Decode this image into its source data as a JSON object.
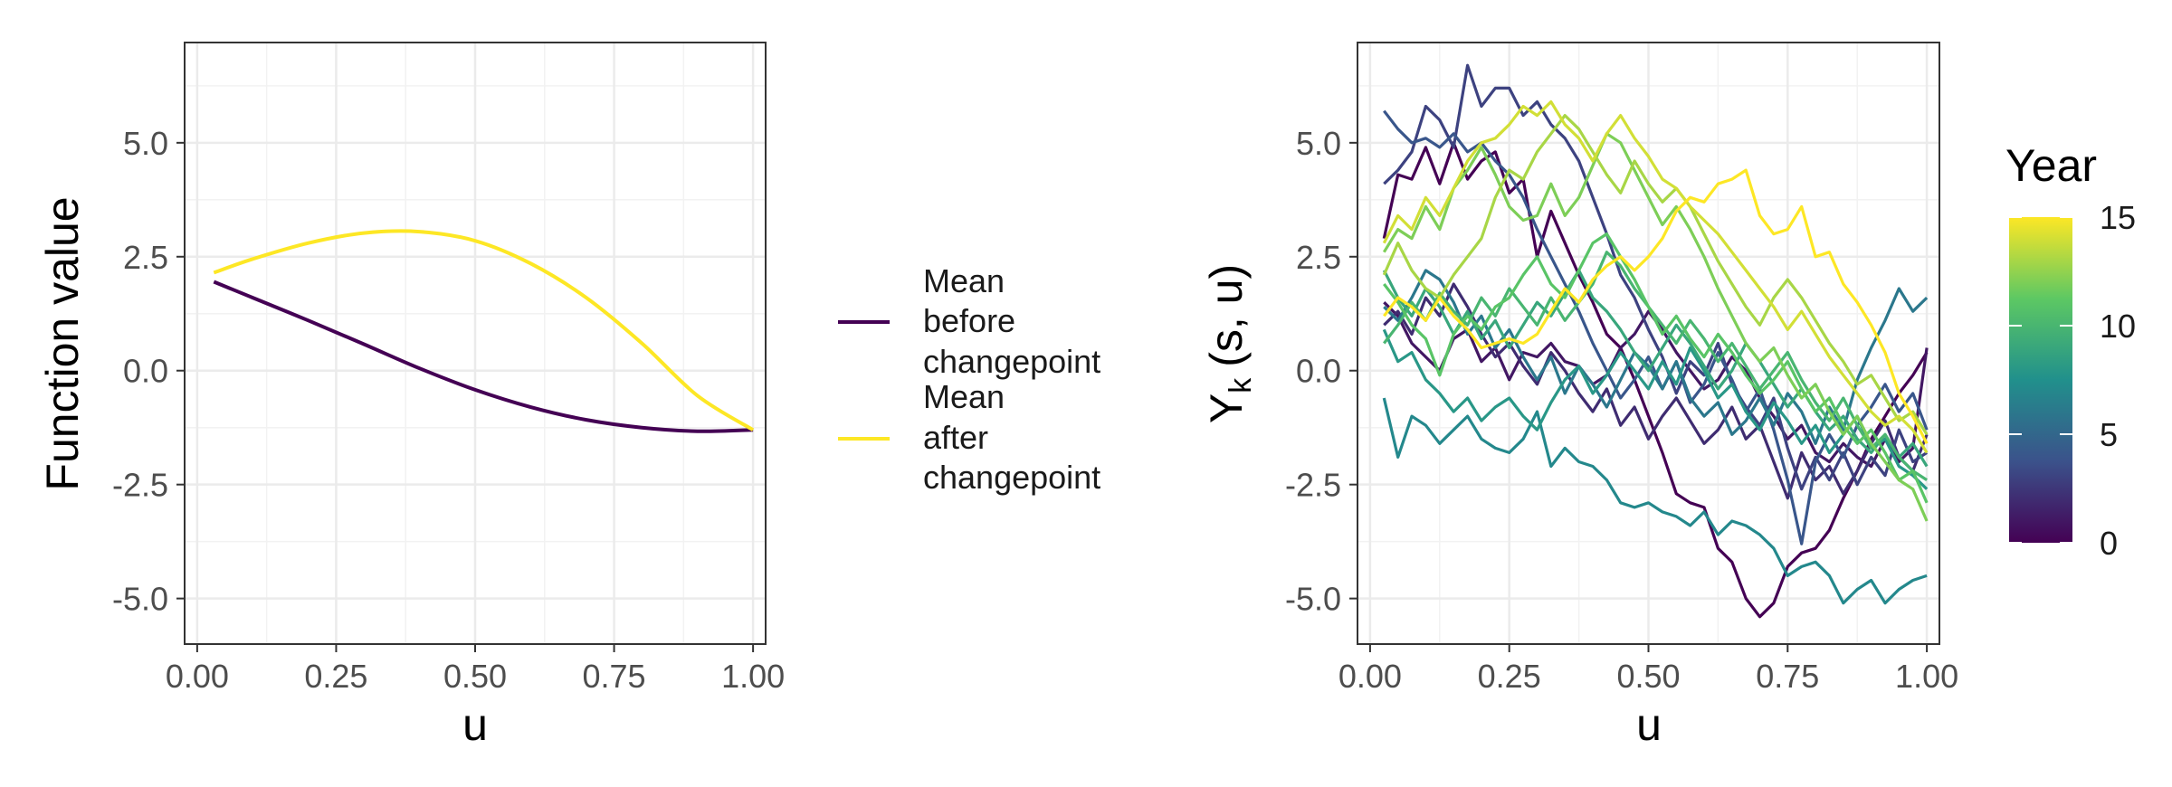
{
  "chart_data": [
    {
      "type": "line",
      "xlabel": "u",
      "ylabel": "Function value",
      "xlim": [
        0,
        1
      ],
      "ylim": [
        -6,
        7.2
      ],
      "xticks": [
        "0.00",
        "0.25",
        "0.50",
        "0.75",
        "1.00"
      ],
      "yticks": [
        "-5.0",
        "-2.5",
        "0.0",
        "2.5",
        "5.0"
      ],
      "grid": true,
      "legend_position": "right",
      "series": [
        {
          "name": "Mean before changepoint",
          "color": "#440154",
          "x": [
            0.03,
            0.1,
            0.2,
            0.3,
            0.4,
            0.5,
            0.6,
            0.7,
            0.8,
            0.9,
            1.0
          ],
          "y": [
            1.95,
            1.6,
            1.1,
            0.58,
            0.05,
            -0.42,
            -0.8,
            -1.08,
            -1.25,
            -1.33,
            -1.3
          ]
        },
        {
          "name": "Mean after changepoint",
          "color": "#FDE725",
          "x": [
            0.03,
            0.1,
            0.2,
            0.3,
            0.4,
            0.5,
            0.6,
            0.7,
            0.8,
            0.9,
            1.0
          ],
          "y": [
            2.15,
            2.45,
            2.8,
            3.02,
            3.05,
            2.85,
            2.35,
            1.6,
            0.6,
            -0.55,
            -1.3
          ]
        }
      ],
      "legend_lines": [
        [
          "Mean",
          "before",
          "changepoint"
        ],
        [
          "Mean",
          "after",
          "changepoint"
        ]
      ]
    },
    {
      "type": "line",
      "xlabel": "u",
      "ylabel_main": "Y",
      "ylabel_sub": "k",
      "ylabel_rest": "(s, u)",
      "xlim": [
        0,
        1
      ],
      "ylim": [
        -6,
        7.2
      ],
      "xticks": [
        "0.00",
        "0.25",
        "0.50",
        "0.75",
        "1.00"
      ],
      "yticks": [
        "-5.0",
        "-2.5",
        "0.0",
        "2.5",
        "5.0"
      ],
      "grid": true,
      "color_scale": {
        "title": "Year",
        "min": 0,
        "max": 15,
        "ticks": [
          "0",
          "5",
          "10",
          "15"
        ],
        "colors": [
          "#440154",
          "#3B528B",
          "#21908C",
          "#5DC863",
          "#FDE725"
        ]
      },
      "x": [
        0.025,
        0.05,
        0.075,
        0.1,
        0.125,
        0.15,
        0.175,
        0.2,
        0.225,
        0.25,
        0.275,
        0.3,
        0.325,
        0.35,
        0.375,
        0.4,
        0.425,
        0.45,
        0.475,
        0.5,
        0.525,
        0.55,
        0.575,
        0.6,
        0.625,
        0.65,
        0.675,
        0.7,
        0.725,
        0.75,
        0.775,
        0.8,
        0.825,
        0.85,
        0.875,
        0.9,
        0.925,
        0.95,
        0.975,
        1.0
      ],
      "series": [
        {
          "year": 0,
          "y": [
            2.9,
            4.3,
            4.2,
            4.9,
            4.1,
            5.0,
            4.2,
            4.6,
            4.8,
            3.9,
            4.2,
            2.5,
            3.5,
            2.8,
            2.1,
            1.5,
            0.8,
            0.5,
            -0.2,
            -1.0,
            -1.8,
            -2.7,
            -2.9,
            -3.0,
            -3.9,
            -4.2,
            -5.0,
            -5.4,
            -5.1,
            -4.3,
            -4.0,
            -3.9,
            -3.5,
            -2.8,
            -2.2,
            -1.5,
            -1.0,
            -0.5,
            -0.1,
            0.4
          ]
        },
        {
          "year": 1,
          "y": [
            1.5,
            1.2,
            0.6,
            0.3,
            0.0,
            0.7,
            0.9,
            0.2,
            0.5,
            -0.2,
            0.4,
            0.3,
            0.6,
            0.2,
            0.1,
            -0.3,
            -0.1,
            0.5,
            0.8,
            1.3,
            0.9,
            0.4,
            0.0,
            -0.4,
            -0.2,
            0.3,
            0.0,
            -0.6,
            -1.0,
            -1.5,
            -1.2,
            -1.8,
            -2.0,
            -1.6,
            -1.9,
            -2.1,
            -1.5,
            -2.0,
            -1.7,
            0.5
          ]
        },
        {
          "year": 2,
          "y": [
            1.0,
            1.3,
            0.8,
            1.6,
            1.2,
            1.9,
            1.4,
            0.8,
            0.3,
            0.6,
            0.1,
            -0.3,
            0.4,
            0.0,
            -0.5,
            -0.9,
            -0.4,
            -1.2,
            -0.8,
            -1.5,
            -1.0,
            -0.6,
            -1.1,
            -1.6,
            -1.3,
            -0.8,
            -1.5,
            -1.2,
            -2.0,
            -2.8,
            -1.8,
            -2.4,
            -2.1,
            -2.7,
            -2.2,
            -1.6,
            -1.1,
            -1.9,
            -2.2,
            -1.4
          ]
        },
        {
          "year": 3,
          "y": [
            4.1,
            4.4,
            4.8,
            5.8,
            5.5,
            4.9,
            6.7,
            5.8,
            6.2,
            6.2,
            5.6,
            5.9,
            5.4,
            5.1,
            4.6,
            3.8,
            3.0,
            2.1,
            1.6,
            0.9,
            0.3,
            -0.5,
            0.2,
            -0.1,
            0.6,
            -0.3,
            -0.8,
            -1.2,
            -0.6,
            -1.7,
            -2.6,
            -1.9,
            -2.4,
            -1.8,
            -2.5,
            -1.9,
            -2.3,
            -1.3,
            -2.0,
            -1.8
          ]
        },
        {
          "year": 4,
          "y": [
            5.7,
            5.3,
            5.0,
            5.1,
            4.9,
            5.2,
            4.8,
            5.0,
            4.6,
            4.3,
            3.8,
            3.1,
            2.5,
            1.9,
            1.3,
            0.6,
            0.0,
            -0.6,
            -0.2,
            0.3,
            -0.4,
            0.2,
            -0.7,
            -0.3,
            0.4,
            -0.2,
            -0.9,
            -0.4,
            -1.3,
            -2.4,
            -3.8,
            -2.0,
            -1.4,
            -1.9,
            -1.2,
            -0.8,
            -0.3,
            -0.9,
            -0.5,
            -1.3
          ]
        },
        {
          "year": 6,
          "y": [
            1.4,
            1.1,
            1.6,
            2.2,
            2.0,
            1.5,
            0.8,
            1.2,
            0.5,
            0.9,
            0.3,
            -0.2,
            0.3,
            -0.5,
            0.1,
            -0.3,
            -0.8,
            -0.2,
            0.4,
            0.1,
            -0.4,
            0.2,
            -0.6,
            -1.0,
            -0.7,
            -1.4,
            -1.1,
            -0.6,
            -1.2,
            -0.5,
            -0.9,
            -1.6,
            -0.8,
            -1.3,
            -0.2,
            0.5,
            1.1,
            1.8,
            1.3,
            1.6
          ]
        },
        {
          "year": 7,
          "y": [
            -0.6,
            -1.9,
            -1.0,
            -1.2,
            -1.6,
            -1.3,
            -1.0,
            -1.5,
            -1.7,
            -1.8,
            -1.5,
            -0.9,
            -2.1,
            -1.7,
            -2.0,
            -2.1,
            -2.4,
            -2.9,
            -3.0,
            -2.9,
            -3.1,
            -3.2,
            -3.4,
            -3.1,
            -3.6,
            -3.3,
            -3.4,
            -3.6,
            -3.9,
            -4.5,
            -4.3,
            -4.2,
            -4.5,
            -5.1,
            -4.8,
            -4.6,
            -5.1,
            -4.8,
            -4.6,
            -4.5
          ]
        },
        {
          "year": 8,
          "y": [
            0.9,
            0.2,
            0.4,
            -0.2,
            -0.5,
            -0.9,
            -0.6,
            -1.1,
            -0.8,
            -0.6,
            -1.0,
            -1.3,
            -0.7,
            -0.2,
            0.1,
            -0.5,
            -0.1,
            0.4,
            0.0,
            -0.4,
            0.2,
            -0.3,
            0.5,
            0.0,
            -0.6,
            -0.3,
            -0.9,
            -1.3,
            -0.7,
            -1.1,
            -1.6,
            -1.2,
            -1.8,
            -1.4,
            -1.0,
            -1.7,
            -1.5,
            -2.1,
            -2.3,
            -2.6
          ]
        },
        {
          "year": 9,
          "y": [
            2.2,
            1.6,
            1.2,
            1.8,
            1.4,
            0.8,
            1.3,
            0.7,
            1.1,
            0.5,
            1.0,
            1.5,
            1.2,
            1.7,
            2.2,
            1.6,
            1.3,
            0.9,
            0.4,
            0.0,
            0.5,
            1.0,
            0.6,
            0.1,
            -0.4,
            0.0,
            0.6,
            0.2,
            -0.3,
            -0.8,
            -0.4,
            -0.9,
            -1.3,
            -1.0,
            -1.5,
            -1.8,
            -1.4,
            -1.9,
            -1.6,
            -2.1
          ]
        },
        {
          "year": 10,
          "y": [
            0.6,
            1.0,
            1.5,
            1.1,
            1.7,
            1.3,
            1.0,
            1.6,
            1.2,
            1.8,
            1.4,
            1.0,
            1.6,
            1.1,
            1.5,
            1.9,
            2.6,
            2.3,
            1.8,
            1.4,
            1.0,
            0.6,
            1.1,
            0.7,
            0.2,
            0.6,
            0.1,
            -0.4,
            0.0,
            0.4,
            -0.2,
            -0.7,
            -1.1,
            -0.6,
            -1.2,
            -1.7,
            -1.4,
            -1.9,
            -2.2,
            -2.4
          ]
        },
        {
          "year": 11,
          "y": [
            1.9,
            1.5,
            1.0,
            0.7,
            -0.1,
            0.8,
            1.2,
            0.9,
            1.4,
            1.6,
            2.1,
            2.5,
            1.9,
            1.6,
            2.2,
            2.8,
            3.0,
            2.5,
            2.0,
            1.4,
            0.8,
            1.2,
            0.7,
            0.3,
            0.8,
            0.4,
            -0.1,
            -0.5,
            -0.2,
            0.2,
            -0.4,
            -0.9,
            -0.6,
            -1.2,
            -1.6,
            -1.3,
            -1.8,
            -2.4,
            -2.2,
            -2.9
          ]
        },
        {
          "year": 12,
          "y": [
            2.6,
            3.1,
            2.9,
            3.6,
            3.1,
            4.0,
            4.4,
            4.9,
            4.3,
            3.6,
            3.3,
            3.4,
            4.1,
            3.4,
            3.8,
            4.5,
            5.2,
            5.0,
            4.4,
            3.8,
            3.2,
            3.6,
            3.1,
            2.5,
            1.8,
            1.2,
            0.6,
            0.2,
            0.5,
            -0.1,
            -0.6,
            -0.3,
            -0.9,
            -1.4,
            -1.0,
            -1.6,
            -2.0,
            -2.4,
            -2.6,
            -3.3
          ]
        },
        {
          "year": 13,
          "y": [
            2.1,
            2.8,
            2.2,
            1.8,
            1.6,
            2.1,
            2.5,
            2.9,
            3.8,
            4.4,
            4.2,
            4.8,
            5.2,
            5.6,
            5.3,
            4.8,
            4.3,
            3.9,
            4.6,
            4.1,
            3.7,
            4.0,
            3.6,
            3.0,
            2.4,
            1.9,
            1.4,
            1.0,
            1.6,
            2.0,
            1.6,
            1.1,
            0.6,
            0.2,
            -0.3,
            -0.1,
            -0.6,
            -1.1,
            -0.9,
            -1.4
          ]
        },
        {
          "year": 14,
          "y": [
            2.8,
            3.4,
            3.1,
            3.8,
            3.4,
            4.0,
            4.6,
            5.0,
            5.1,
            5.4,
            5.8,
            5.6,
            5.9,
            5.4,
            5.1,
            4.6,
            5.2,
            5.6,
            5.1,
            4.7,
            4.2,
            4.0,
            3.6,
            3.3,
            3.0,
            2.6,
            2.2,
            1.8,
            1.4,
            0.9,
            1.3,
            0.8,
            0.3,
            -0.1,
            -0.5,
            -0.9,
            -1.2,
            -1.0,
            -1.3,
            -1.8
          ]
        },
        {
          "year": 15,
          "y": [
            1.2,
            1.6,
            1.4,
            1.1,
            1.6,
            1.2,
            0.9,
            0.5,
            0.6,
            0.7,
            0.6,
            0.8,
            1.3,
            1.8,
            1.5,
            2.0,
            2.3,
            2.5,
            2.2,
            2.5,
            2.9,
            3.5,
            3.8,
            3.7,
            4.1,
            4.2,
            4.4,
            3.4,
            3.0,
            3.1,
            3.6,
            2.5,
            2.6,
            1.9,
            1.5,
            1.0,
            0.4,
            -0.5,
            -1.0,
            -1.6
          ]
        }
      ]
    }
  ]
}
